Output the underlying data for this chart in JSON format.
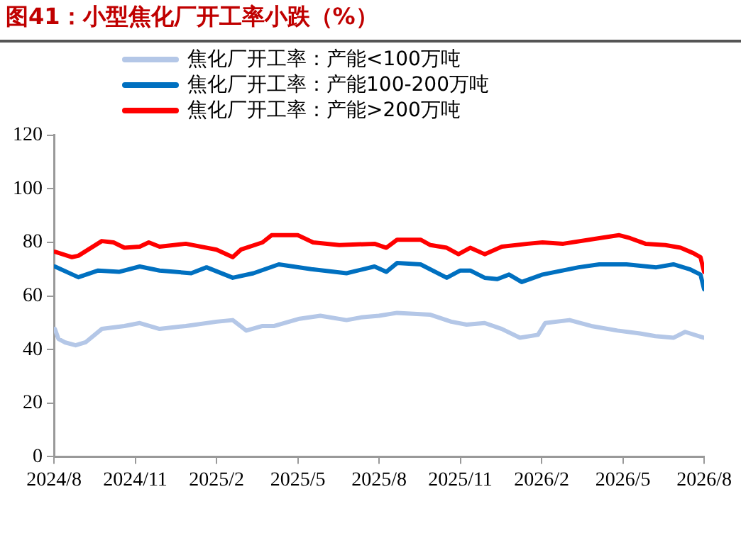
{
  "chart_data": {
    "type": "line",
    "title": "图41：小型焦化厂开工率小跌（%）",
    "xlim": [
      "2024-08",
      "2026-08"
    ],
    "xticks": [
      {
        "value": "2024-08",
        "label": "2024/8"
      },
      {
        "value": "2024-11",
        "label": "2024/11"
      },
      {
        "value": "2025-02",
        "label": "2025/2"
      },
      {
        "value": "2025-05",
        "label": "2025/5"
      },
      {
        "value": "2025-08",
        "label": "2025/8"
      },
      {
        "value": "2025-11",
        "label": "2025/11"
      },
      {
        "value": "2026-02",
        "label": "2026/2"
      },
      {
        "value": "2026-05",
        "label": "2026/5"
      },
      {
        "value": "2026-08",
        "label": "2026/8"
      }
    ],
    "ylim": [
      0,
      120
    ],
    "yticks": [
      0,
      20,
      40,
      60,
      80,
      100,
      120
    ],
    "grid": false,
    "legend": "top",
    "marker": "none",
    "line_style": "solid",
    "series": [
      {
        "name": "焦化厂开工率：产能<100万吨",
        "color": "#b4c7e7",
        "x": [
          "2024-08-02",
          "2024-08-06",
          "2024-08-13",
          "2024-08-25",
          "2024-09-06",
          "2024-09-24",
          "2024-10-19",
          "2024-11-06",
          "2024-11-28",
          "2024-12-27",
          "2025-02-01",
          "2025-02-19",
          "2025-03-04",
          "2025-03-22",
          "2025-04-05",
          "2025-05-03",
          "2025-05-26",
          "2025-06-25",
          "2025-07-11",
          "2025-08-01",
          "2025-08-21",
          "2025-09-28",
          "2025-10-21",
          "2025-11-08",
          "2025-11-28",
          "2025-12-17",
          "2026-01-07",
          "2026-01-27",
          "2026-02-05",
          "2026-03-02",
          "2026-03-26",
          "2026-04-25",
          "2026-05-20",
          "2026-06-07",
          "2026-06-27",
          "2026-07-10",
          "2026-08-01"
        ],
        "values": [
          47.7,
          44,
          42.7,
          41.6,
          42.7,
          47.7,
          48.8,
          49.9,
          47.7,
          48.8,
          50.4,
          51,
          47.1,
          48.8,
          48.8,
          51.5,
          52.6,
          51,
          52,
          52.6,
          53.7,
          53,
          50.4,
          49.3,
          49.9,
          47.7,
          44.4,
          45.5,
          49.9,
          51,
          48.8,
          47.1,
          46,
          45,
          44.4,
          46.6,
          44.4
        ]
      },
      {
        "name": "焦化厂开工率：产能100-200万吨",
        "color": "#0070c0",
        "x": [
          "2024-08-02",
          "2024-08-28",
          "2024-09-20",
          "2024-10-13",
          "2024-11-06",
          "2024-11-28",
          "2025-01-03",
          "2025-01-20",
          "2025-02-19",
          "2025-03-12",
          "2025-04-10",
          "2025-05-16",
          "2025-06-25",
          "2025-07-26",
          "2025-08-09",
          "2025-08-21",
          "2025-09-17",
          "2025-10-16",
          "2025-11-01",
          "2025-11-12",
          "2025-11-28",
          "2025-12-12",
          "2025-12-25",
          "2026-01-09",
          "2026-02-02",
          "2026-03-12",
          "2026-04-05",
          "2026-05-05",
          "2026-06-08",
          "2026-06-27",
          "2026-07-15",
          "2026-07-27",
          "2026-08-01"
        ],
        "values": [
          71,
          67,
          69.5,
          69,
          71,
          69.5,
          68.5,
          70.7,
          66.8,
          68.5,
          71.8,
          70,
          68.5,
          71,
          69,
          72.3,
          71.8,
          66.8,
          69.5,
          69.5,
          66.8,
          66.3,
          68,
          65.2,
          68,
          70.7,
          71.8,
          71.8,
          70.7,
          71.8,
          70,
          68,
          62.5
        ]
      },
      {
        "name": "焦化厂开工率：产能>200万吨",
        "color": "#ff0000",
        "x": [
          "2024-08-02",
          "2024-08-21",
          "2024-08-28",
          "2024-09-24",
          "2024-10-07",
          "2024-10-19",
          "2024-11-06",
          "2024-11-16",
          "2024-11-28",
          "2024-12-27",
          "2025-02-01",
          "2025-02-19",
          "2025-02-28",
          "2025-03-22",
          "2025-04-02",
          "2025-05-01",
          "2025-05-18",
          "2025-06-17",
          "2025-07-26",
          "2025-08-09",
          "2025-08-21",
          "2025-09-17",
          "2025-09-28",
          "2025-10-16",
          "2025-10-29",
          "2025-11-12",
          "2025-11-28",
          "2025-12-17",
          "2026-01-16",
          "2026-02-02",
          "2026-02-25",
          "2026-04-05",
          "2026-04-27",
          "2026-05-09",
          "2026-05-26",
          "2026-06-18",
          "2026-07-05",
          "2026-07-19",
          "2026-07-27",
          "2026-08-01"
        ],
        "values": [
          76.5,
          74.5,
          75,
          80.5,
          80,
          78,
          78.4,
          80,
          78.4,
          79.5,
          77.3,
          74.5,
          77.3,
          80,
          82.7,
          82.7,
          80,
          79,
          79.5,
          78,
          81,
          81,
          79,
          78,
          75.6,
          78,
          75.6,
          78.4,
          79.5,
          80,
          79.5,
          81.6,
          82.7,
          81.6,
          79.5,
          79,
          78,
          76,
          74.5,
          69
        ]
      }
    ]
  }
}
